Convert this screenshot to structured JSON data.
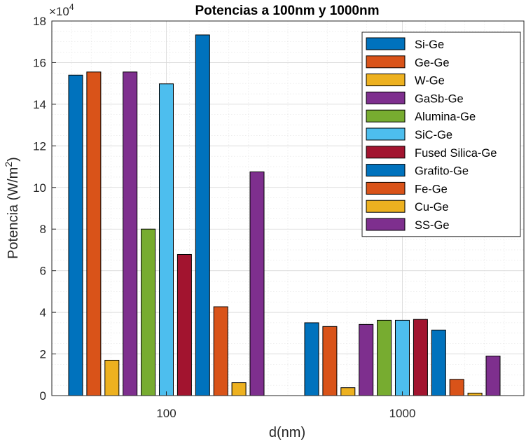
{
  "chart_data": {
    "type": "bar",
    "title": "Potencias a 100nm y 1000nm",
    "xlabel": "d(nm)",
    "ylabel": "Potencia (W/m",
    "ylabel_sup": "2",
    "ylabel_close": ")",
    "exponent_base": "×10",
    "exponent_power": "4",
    "categories": [
      "100",
      "1000"
    ],
    "ylim": [
      0,
      18
    ],
    "yticks": [
      "0",
      "2",
      "4",
      "6",
      "8",
      "10",
      "12",
      "14",
      "16",
      "18"
    ],
    "grid": true,
    "legend_position": "top-right",
    "series": [
      {
        "name": "Si-Ge",
        "color": "#0072BD",
        "values": [
          15.4,
          3.5
        ]
      },
      {
        "name": "Ge-Ge",
        "color": "#D95319",
        "values": [
          15.55,
          3.32
        ]
      },
      {
        "name": "W-Ge",
        "color": "#EDB120",
        "values": [
          1.7,
          0.38
        ]
      },
      {
        "name": "GaSb-Ge",
        "color": "#7E2F8E",
        "values": [
          15.55,
          3.42
        ]
      },
      {
        "name": "Alumina-Ge",
        "color": "#77AC30",
        "values": [
          8.0,
          3.62
        ]
      },
      {
        "name": "SiC-Ge",
        "color": "#4DBEEE",
        "values": [
          14.98,
          3.62
        ]
      },
      {
        "name": "Fused Silica-Ge",
        "color": "#A2142F",
        "values": [
          6.78,
          3.66
        ]
      },
      {
        "name": "Grafito-Ge",
        "color": "#0072BD",
        "values": [
          17.33,
          3.15
        ]
      },
      {
        "name": "Fe-Ge",
        "color": "#D95319",
        "values": [
          4.27,
          0.78
        ]
      },
      {
        "name": "Cu-Ge",
        "color": "#EDB120",
        "values": [
          0.62,
          0.12
        ]
      },
      {
        "name": "SS-Ge",
        "color": "#7E2F8E",
        "values": [
          10.75,
          1.9
        ]
      }
    ]
  }
}
